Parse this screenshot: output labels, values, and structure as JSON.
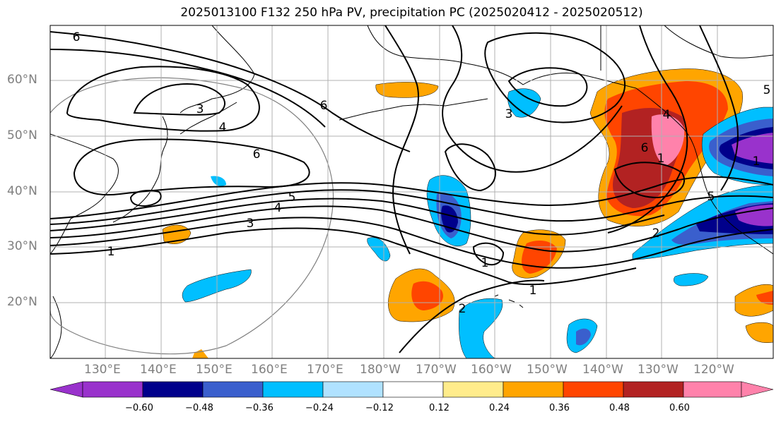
{
  "title": "2025013100 F132 250 hPa PV, precipitation PC (2025020412 - 2025020512)",
  "map": {
    "lat_labels": [
      "60°N",
      "50°N",
      "40°N",
      "30°N",
      "20°N"
    ],
    "lon_labels": [
      "130°E",
      "140°E",
      "150°E",
      "160°E",
      "170°E",
      "180°W",
      "170°W",
      "160°W",
      "150°W",
      "140°W",
      "130°W",
      "120°W"
    ],
    "pv_contour_labels": [
      "6",
      "3",
      "4",
      "6",
      "6",
      "5",
      "4",
      "3",
      "1",
      "1",
      "1",
      "2",
      "1",
      "2",
      "3",
      "5",
      "6",
      "1",
      "4",
      "5"
    ]
  },
  "colorbar": {
    "ticks": [
      "−0.60",
      "−0.48",
      "−0.36",
      "−0.24",
      "−0.12",
      "0.12",
      "0.24",
      "0.36",
      "0.48",
      "0.60"
    ],
    "colors": [
      "#9932CC",
      "#00008B",
      "#3A5FCD",
      "#00BFFF",
      "#B0E2FF",
      "#FFFFFF",
      "#FFEC8B",
      "#FFA500",
      "#FF4500",
      "#B22222",
      "#FF82AB"
    ]
  }
}
